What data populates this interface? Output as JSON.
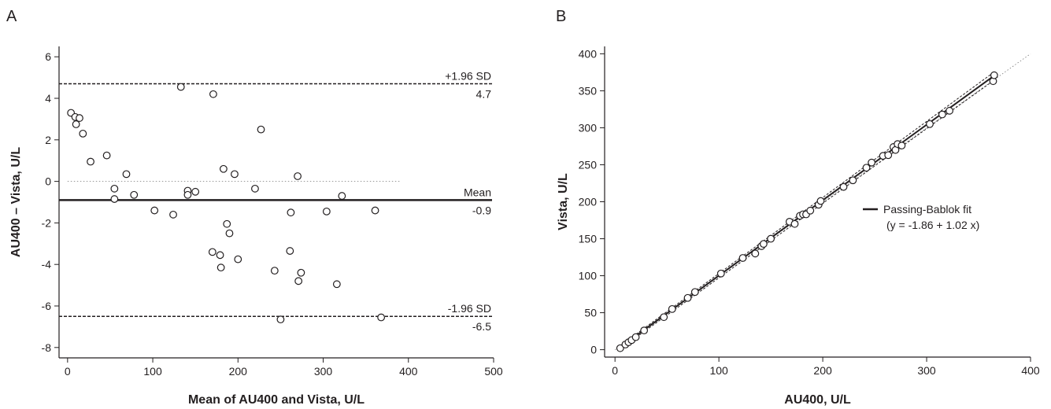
{
  "chart_data": [
    {
      "type": "scatter",
      "panel_label": "A",
      "xlabel": "Mean of AU400 and Vista, U/L",
      "ylabel": "AU400 – Vista, U/L",
      "xlim": [
        -10,
        500
      ],
      "ylim": [
        -8.5,
        6.5
      ],
      "xticks": [
        0,
        100,
        200,
        300,
        400,
        500
      ],
      "yticks": [
        -8,
        -6,
        -4,
        -2,
        0,
        2,
        4,
        6
      ],
      "grid": false,
      "points": [
        {
          "x": 4,
          "y": 3.3
        },
        {
          "x": 9,
          "y": 3.1
        },
        {
          "x": 14,
          "y": 3.05
        },
        {
          "x": 10,
          "y": 2.75
        },
        {
          "x": 18,
          "y": 2.3
        },
        {
          "x": 27,
          "y": 0.95
        },
        {
          "x": 46,
          "y": 1.25
        },
        {
          "x": 55,
          "y": -0.35
        },
        {
          "x": 55,
          "y": -0.85
        },
        {
          "x": 69,
          "y": 0.35
        },
        {
          "x": 78,
          "y": -0.65
        },
        {
          "x": 102,
          "y": -1.4
        },
        {
          "x": 124,
          "y": -1.6
        },
        {
          "x": 133,
          "y": 4.55
        },
        {
          "x": 141,
          "y": -0.45
        },
        {
          "x": 141,
          "y": -0.65
        },
        {
          "x": 150,
          "y": -0.5
        },
        {
          "x": 170,
          "y": -3.4
        },
        {
          "x": 171,
          "y": 4.2
        },
        {
          "x": 179,
          "y": -3.55
        },
        {
          "x": 180,
          "y": -4.15
        },
        {
          "x": 183,
          "y": 0.6
        },
        {
          "x": 187,
          "y": -2.05
        },
        {
          "x": 190,
          "y": -2.5
        },
        {
          "x": 196,
          "y": 0.35
        },
        {
          "x": 200,
          "y": -3.75
        },
        {
          "x": 220,
          "y": -0.35
        },
        {
          "x": 227,
          "y": 2.5
        },
        {
          "x": 243,
          "y": -4.3
        },
        {
          "x": 250,
          "y": -6.65
        },
        {
          "x": 261,
          "y": -3.35
        },
        {
          "x": 262,
          "y": -1.5
        },
        {
          "x": 270,
          "y": 0.25
        },
        {
          "x": 271,
          "y": -4.8
        },
        {
          "x": 274,
          "y": -4.4
        },
        {
          "x": 304,
          "y": -1.45
        },
        {
          "x": 316,
          "y": -4.95
        },
        {
          "x": 322,
          "y": -0.7
        },
        {
          "x": 361,
          "y": -1.4
        },
        {
          "x": 368,
          "y": -6.55
        }
      ],
      "reference_lines": [
        {
          "name": "+1.96 SD",
          "value": 4.7,
          "label": "4.7",
          "style": "dashed"
        },
        {
          "name": "Mean",
          "value": -0.9,
          "label": "-0.9",
          "style": "solid"
        },
        {
          "name": "-1.96 SD",
          "value": -6.5,
          "label": "-6.5",
          "style": "dashed"
        },
        {
          "name": "",
          "value": 0,
          "x_range": [
            0,
            390
          ],
          "style": "dotted"
        }
      ]
    },
    {
      "type": "scatter",
      "panel_label": "B",
      "xlabel": "AU400, U/L",
      "ylabel": "Vista, U/L",
      "xlim": [
        -10,
        400
      ],
      "ylim": [
        -10,
        410
      ],
      "xticks": [
        0,
        100,
        200,
        300,
        400
      ],
      "yticks": [
        0,
        50,
        100,
        150,
        200,
        250,
        300,
        350,
        400
      ],
      "grid": false,
      "legend": {
        "position": "right-middle",
        "entries": [
          "Passing-Bablok fit",
          "(y =  -1.86 + 1.02 x)"
        ]
      },
      "fit": {
        "name": "Passing-Bablok fit",
        "intercept": -1.86,
        "slope": 1.02,
        "x_range": [
          5,
          365
        ]
      },
      "identity_line": {
        "x_range": [
          0,
          400
        ],
        "style": "dotted"
      },
      "points": [
        {
          "x": 5,
          "y": 2
        },
        {
          "x": 10,
          "y": 7
        },
        {
          "x": 13,
          "y": 10
        },
        {
          "x": 16,
          "y": 13
        },
        {
          "x": 20,
          "y": 17
        },
        {
          "x": 28,
          "y": 26
        },
        {
          "x": 47,
          "y": 44
        },
        {
          "x": 55,
          "y": 55
        },
        {
          "x": 70,
          "y": 70
        },
        {
          "x": 77,
          "y": 78
        },
        {
          "x": 102,
          "y": 103
        },
        {
          "x": 123,
          "y": 124
        },
        {
          "x": 135,
          "y": 130
        },
        {
          "x": 141,
          "y": 140
        },
        {
          "x": 143,
          "y": 143
        },
        {
          "x": 150,
          "y": 150
        },
        {
          "x": 168,
          "y": 173
        },
        {
          "x": 173,
          "y": 170
        },
        {
          "x": 178,
          "y": 181
        },
        {
          "x": 181,
          "y": 183
        },
        {
          "x": 184,
          "y": 183
        },
        {
          "x": 188,
          "y": 188
        },
        {
          "x": 196,
          "y": 196
        },
        {
          "x": 198,
          "y": 201
        },
        {
          "x": 220,
          "y": 220
        },
        {
          "x": 229,
          "y": 229
        },
        {
          "x": 242,
          "y": 246
        },
        {
          "x": 247,
          "y": 253
        },
        {
          "x": 258,
          "y": 262
        },
        {
          "x": 263,
          "y": 263
        },
        {
          "x": 268,
          "y": 274
        },
        {
          "x": 270,
          "y": 270
        },
        {
          "x": 272,
          "y": 278
        },
        {
          "x": 276,
          "y": 276
        },
        {
          "x": 303,
          "y": 305
        },
        {
          "x": 315,
          "y": 318
        },
        {
          "x": 322,
          "y": 323
        },
        {
          "x": 364,
          "y": 363
        },
        {
          "x": 365,
          "y": 371
        }
      ]
    }
  ]
}
